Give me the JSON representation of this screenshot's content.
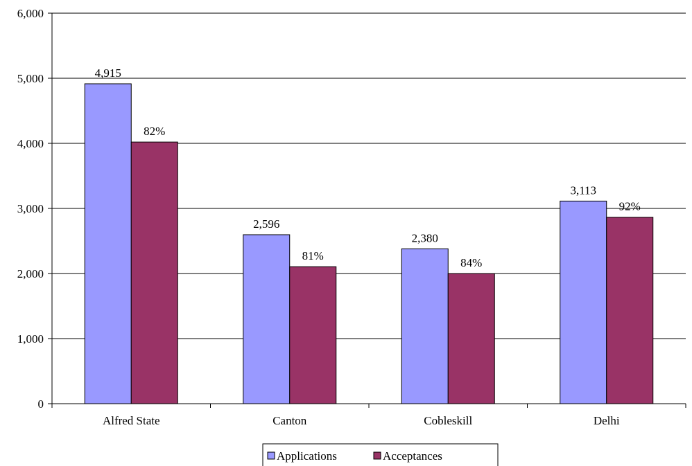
{
  "chart_data": {
    "type": "bar",
    "title": "",
    "xlabel": "",
    "ylabel": "",
    "categories": [
      "Alfred State",
      "Canton",
      "Cobleskill",
      "Delhi"
    ],
    "series": [
      {
        "name": "Applications",
        "color": "#9999ff",
        "values": [
          4915,
          2596,
          2380,
          3113
        ],
        "labels": [
          "4,915",
          "2,596",
          "2,380",
          "3,113"
        ]
      },
      {
        "name": "Acceptances",
        "color": "#993366",
        "values": [
          4020,
          2105,
          2000,
          2865
        ],
        "labels": [
          "82%",
          "81%",
          "84%",
          "92%"
        ]
      }
    ],
    "ylim": [
      0,
      6000
    ],
    "yticks": [
      0,
      1000,
      2000,
      3000,
      4000,
      5000,
      6000
    ],
    "ytick_labels": [
      "0",
      "1,000",
      "2,000",
      "3,000",
      "4,000",
      "5,000",
      "6,000"
    ],
    "grid": true,
    "legend_position": "bottom"
  }
}
